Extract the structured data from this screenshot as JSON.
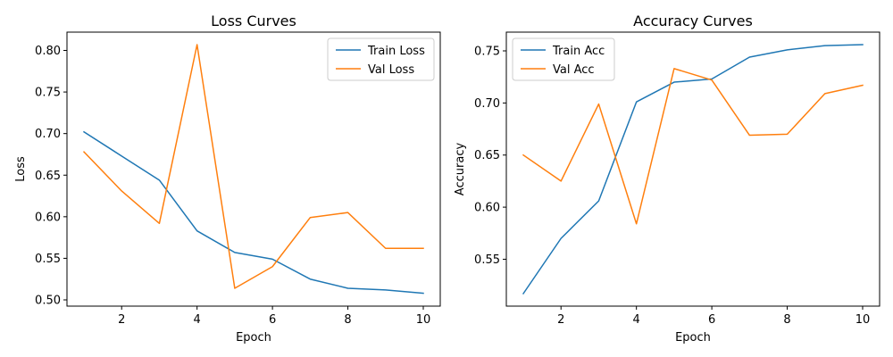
{
  "colors": {
    "train": "#1f77b4",
    "val": "#ff7f0e"
  },
  "chart_data": [
    {
      "type": "line",
      "title": "Loss Curves",
      "xlabel": "Epoch",
      "ylabel": "Loss",
      "x": [
        1,
        2,
        3,
        4,
        5,
        6,
        7,
        8,
        9,
        10
      ],
      "xticks": [
        2,
        4,
        6,
        8,
        10
      ],
      "xlim": [
        0.55,
        10.45
      ],
      "yticks": [
        0.5,
        0.55,
        0.6,
        0.65,
        0.7,
        0.75,
        0.8
      ],
      "ytick_labels": [
        "0.50",
        "0.55",
        "0.60",
        "0.65",
        "0.70",
        "0.75",
        "0.80"
      ],
      "ylim": [
        0.4925,
        0.822
      ],
      "legend_position": "top-right",
      "grid": false,
      "series": [
        {
          "name": "Train Loss",
          "color": "#1f77b4",
          "values": [
            0.702,
            0.673,
            0.644,
            0.583,
            0.557,
            0.549,
            0.525,
            0.514,
            0.512,
            0.508
          ]
        },
        {
          "name": "Val Loss",
          "color": "#ff7f0e",
          "values": [
            0.678,
            0.631,
            0.592,
            0.807,
            0.514,
            0.54,
            0.599,
            0.605,
            0.562,
            0.562
          ]
        }
      ]
    },
    {
      "type": "line",
      "title": "Accuracy Curves",
      "xlabel": "Epoch",
      "ylabel": "Accuracy",
      "x": [
        1,
        2,
        3,
        4,
        5,
        6,
        7,
        8,
        9,
        10
      ],
      "xticks": [
        2,
        4,
        6,
        8,
        10
      ],
      "xlim": [
        0.55,
        10.45
      ],
      "yticks": [
        0.55,
        0.6,
        0.65,
        0.7,
        0.75
      ],
      "ytick_labels": [
        "0.55",
        "0.60",
        "0.65",
        "0.70",
        "0.75"
      ],
      "ylim": [
        0.505,
        0.768
      ],
      "legend_position": "top-left",
      "grid": false,
      "series": [
        {
          "name": "Train Acc",
          "color": "#1f77b4",
          "values": [
            0.517,
            0.57,
            0.606,
            0.701,
            0.72,
            0.723,
            0.744,
            0.751,
            0.755,
            0.756
          ]
        },
        {
          "name": "Val Acc",
          "color": "#ff7f0e",
          "values": [
            0.65,
            0.625,
            0.699,
            0.584,
            0.733,
            0.722,
            0.669,
            0.67,
            0.709,
            0.717
          ]
        }
      ]
    }
  ]
}
